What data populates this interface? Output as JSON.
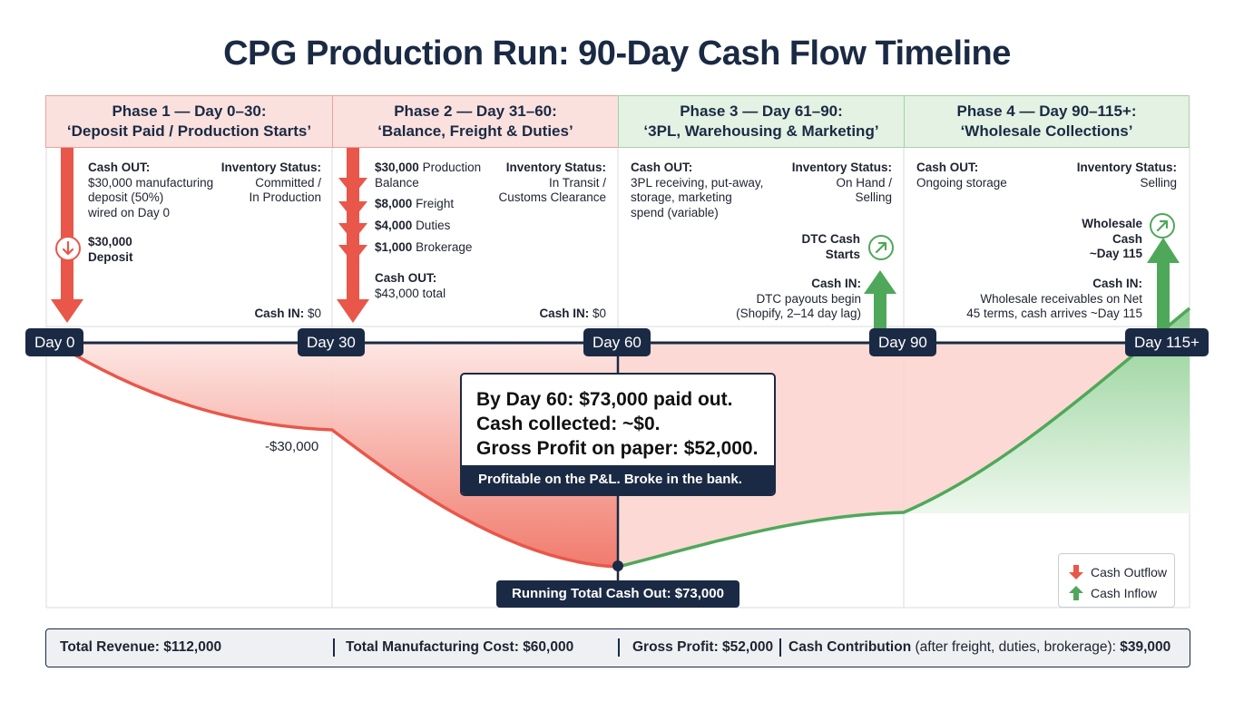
{
  "title": "CPG Production Run: 90-Day Cash Flow Timeline",
  "phases": [
    {
      "line1": "Phase 1 — Day 0–30:",
      "line2": "‘Deposit Paid / Production Starts’",
      "cash_out_label": "Cash OUT:",
      "cash_out_lines": [
        "$30,000 manufacturing",
        "deposit (50%)",
        "wired on Day 0"
      ],
      "inventory_label": "Inventory Status:",
      "inventory_lines": [
        "Committed /",
        "In Production"
      ],
      "deposit_amount": "$30,000",
      "deposit_label": "Deposit",
      "cash_in_label": "Cash IN:",
      "cash_in_value": "$0"
    },
    {
      "line1": "Phase 2 — Day 31–60:",
      "line2": "‘Balance, Freight & Duties’",
      "items": [
        {
          "amount": "$30,000",
          "label": "Production",
          "label2": "Balance"
        },
        {
          "amount": "$8,000",
          "label": "Freight"
        },
        {
          "amount": "$4,000",
          "label": "Duties"
        },
        {
          "amount": "$1,000",
          "label": "Brokerage"
        }
      ],
      "inventory_label": "Inventory Status:",
      "inventory_lines": [
        "In Transit /",
        "Customs Clearance"
      ],
      "cash_out_label": "Cash OUT:",
      "cash_out_total": "$43,000 total",
      "cash_in_label": "Cash IN:",
      "cash_in_value": "$0"
    },
    {
      "line1": "Phase 3 — Day 61–90:",
      "line2": "‘3PL, Warehousing & Marketing’",
      "cash_out_label": "Cash OUT:",
      "cash_out_lines": [
        "3PL receiving, put-away,",
        "storage, marketing",
        "spend (variable)"
      ],
      "inventory_label": "Inventory Status:",
      "inventory_lines": [
        "On Hand /",
        "Selling"
      ],
      "marker_lines": [
        "DTC Cash",
        "Starts"
      ],
      "cash_in_label": "Cash IN:",
      "cash_in_lines": [
        "DTC payouts begin",
        "(Shopify, 2–14 day lag)"
      ]
    },
    {
      "line1": "Phase 4 — Day 90–115+:",
      "line2": "‘Wholesale Collections’",
      "cash_out_label": "Cash OUT:",
      "cash_out_lines": [
        "Ongoing storage"
      ],
      "inventory_label": "Inventory Status:",
      "inventory_lines": [
        "Selling"
      ],
      "marker_lines": [
        "Wholesale",
        "Cash",
        "~Day 115"
      ],
      "cash_in_label": "Cash IN:",
      "cash_in_lines": [
        "Wholesale receivables on Net",
        "45 terms, cash arrives ~Day 115"
      ]
    }
  ],
  "timeline": {
    "days": [
      "Day 0",
      "Day 30",
      "Day 60",
      "Day 90",
      "Day 115+"
    ]
  },
  "curve": {
    "level_label": "-$30,000",
    "running_total": "Running Total Cash Out: $73,000"
  },
  "callout": {
    "lines": [
      "By Day 60: $73,000 paid out.",
      "Cash collected: ~$0.",
      "Gross Profit on paper: $52,000."
    ],
    "footer": "Profitable on the P&L. Broke in the bank."
  },
  "legend": {
    "outflow": "Cash Outflow",
    "inflow": "Cash Inflow"
  },
  "summary": {
    "revenue_label": "Total Revenue:",
    "revenue_value": "$112,000",
    "mfg_label": "Total Manufacturing Cost:",
    "mfg_value": "$60,000",
    "gross_label": "Gross Profit:",
    "gross_value": "$52,000",
    "contrib_label": "Cash Contribution",
    "contrib_note": "(after freight, duties, brokerage):",
    "contrib_value": "$39,000"
  },
  "colors": {
    "navy": "#1b2a44",
    "outflow": "#e8574a",
    "inflow": "#4fa85a",
    "red_fill": "#f27d6f",
    "green_fill": "#9fd3a0"
  }
}
